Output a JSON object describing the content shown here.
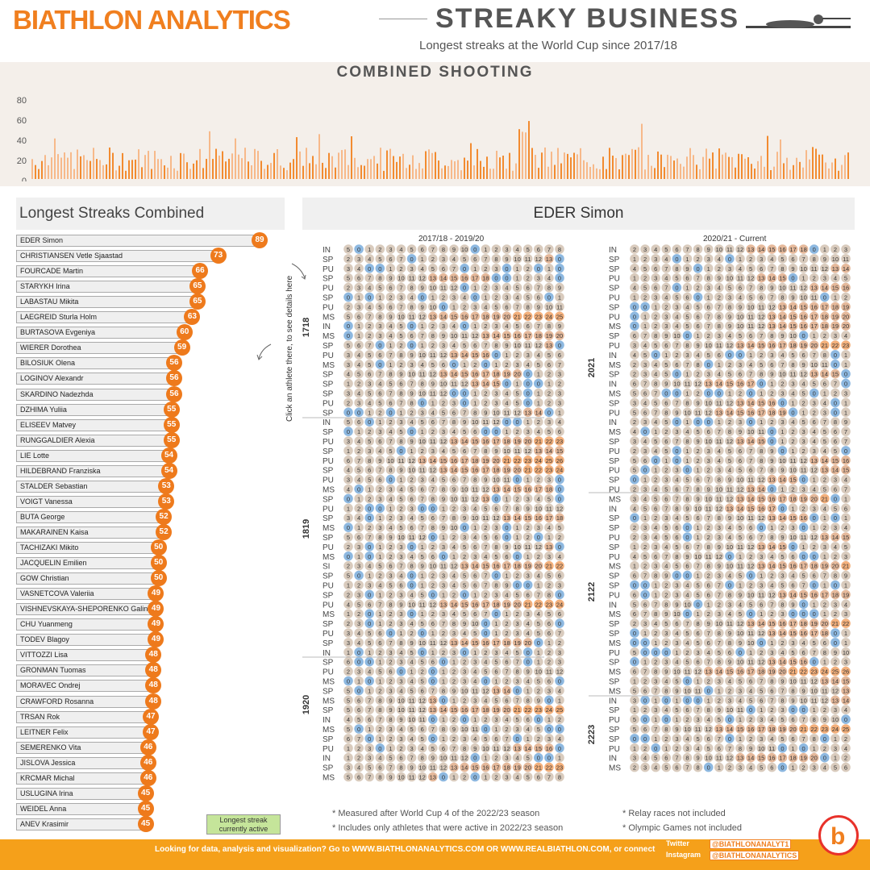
{
  "header": {
    "brand": "BIATHLON ANALYTICS",
    "title": "STREAKY BUSINESS",
    "subtitle": "Longest streaks at the World Cup since 2017/18"
  },
  "spark": {
    "title": "COMBINED SHOOTING",
    "ticks": [
      "80",
      "60",
      "40",
      "20",
      "0"
    ]
  },
  "left": {
    "title": "Longest Streaks Combined",
    "hint": "Click an athlete there, to see details here",
    "legend": "Longest streak currently active",
    "athletes": [
      {
        "name": "EDER Simon",
        "value": 89
      },
      {
        "name": "CHRISTIANSEN Vetle Sjaastad",
        "value": 73
      },
      {
        "name": "FOURCADE Martin",
        "value": 66
      },
      {
        "name": "STARYKH Irina",
        "value": 65
      },
      {
        "name": "LABASTAU Mikita",
        "value": 65
      },
      {
        "name": "LAEGREID Sturla Holm",
        "value": 63
      },
      {
        "name": "BURTASOVA Evgeniya",
        "value": 60
      },
      {
        "name": "WIERER Dorothea",
        "value": 59
      },
      {
        "name": "BILOSIUK Olena",
        "value": 56
      },
      {
        "name": "LOGINOV Alexandr",
        "value": 56
      },
      {
        "name": "SKARDINO Nadezhda",
        "value": 56
      },
      {
        "name": "DZHIMA Yuliia",
        "value": 55
      },
      {
        "name": "ELISEEV Matvey",
        "value": 55
      },
      {
        "name": "RUNGGALDIER Alexia",
        "value": 55
      },
      {
        "name": "LIE Lotte",
        "value": 54
      },
      {
        "name": "HILDEBRAND Franziska",
        "value": 54
      },
      {
        "name": "STALDER Sebastian",
        "value": 53
      },
      {
        "name": "VOIGT Vanessa",
        "value": 53
      },
      {
        "name": "BUTA George",
        "value": 52
      },
      {
        "name": "MAKARAINEN Kaisa",
        "value": 52
      },
      {
        "name": "TACHIZAKI Mikito",
        "value": 50
      },
      {
        "name": "JACQUELIN Emilien",
        "value": 50
      },
      {
        "name": "GOW Christian",
        "value": 50
      },
      {
        "name": "VASNETCOVA Valeriia",
        "value": 49
      },
      {
        "name": "VISHNEVSKAYA-SHEPORENKO Galina",
        "value": 49
      },
      {
        "name": "CHU Yuanmeng",
        "value": 49
      },
      {
        "name": "TODEV Blagoy",
        "value": 49
      },
      {
        "name": "VITTOZZI Lisa",
        "value": 48
      },
      {
        "name": "GRONMAN Tuomas",
        "value": 48
      },
      {
        "name": "MORAVEC Ondrej",
        "value": 48
      },
      {
        "name": "CRAWFORD Rosanna",
        "value": 48
      },
      {
        "name": "TRSAN Rok",
        "value": 47
      },
      {
        "name": "LEITNER Felix",
        "value": 47
      },
      {
        "name": "SEMERENKO Vita",
        "value": 46
      },
      {
        "name": "JISLOVA Jessica",
        "value": 46
      },
      {
        "name": "KRCMAR Michal",
        "value": 46
      },
      {
        "name": "USLUGINA Irina",
        "value": 45
      },
      {
        "name": "WEIDEL Anna",
        "value": 45
      },
      {
        "name": "ANEV Krasimir",
        "value": 45
      }
    ]
  },
  "right": {
    "athlete": "EDER Simon",
    "col1": "2017/18 - 2019/20",
    "col2": "2020/21 - Current",
    "col1_rows": [
      "IN",
      "SP",
      "PU",
      "SP",
      "PU",
      "SP",
      "PU",
      "MS",
      "IN",
      "MS",
      "SP",
      "PU",
      "MS",
      "SP",
      "SP",
      "SP",
      "PU",
      "SP",
      "IN",
      "SP",
      "PU",
      "SP",
      "PU",
      "SP",
      "PU",
      "MS",
      "SP",
      "PU",
      "SP",
      "MS",
      "SP",
      "PU",
      "MS",
      "SI",
      "SP",
      "PU",
      "SP",
      "PU",
      "MS",
      "SP",
      "PU",
      "SP",
      "IN",
      "SP",
      "PU",
      "MS",
      "SP",
      "MS",
      "SP",
      "IN",
      "MS",
      "SP",
      "PU",
      "IN",
      "SP",
      "MS"
    ],
    "col2_rows": [
      "IN",
      "SP",
      "SP",
      "PU",
      "SP",
      "PU",
      "SP",
      "PU",
      "MS",
      "SP",
      "PU",
      "IN",
      "MS",
      "SP",
      "IN",
      "MS",
      "SP",
      "PU",
      "IN",
      "MS",
      "SP",
      "PU",
      "SP",
      "PU",
      "SP",
      "PU",
      "MS",
      "IN",
      "SP",
      "SP",
      "PU",
      "SP",
      "PU",
      "MS",
      "SP",
      "SP",
      "PU",
      "IN",
      "MS",
      "SP",
      "SP",
      "MS",
      "PU",
      "SP",
      "MS",
      "SP",
      "MS",
      "IN",
      "SP",
      "PU",
      "SP",
      "SP",
      "PU",
      "IN",
      "MS"
    ],
    "seasons_left": [
      "1718",
      "1819",
      "1920"
    ],
    "seasons_right": [
      "2021",
      "2122",
      "2223"
    ]
  },
  "notes": [
    "* Measured after World Cup 4 of the 2022/23 season",
    "* Includes only athletes that were active in 2022/23 season",
    "* Relay races not included",
    "* Olympic Games not included"
  ],
  "footer": {
    "text": "Looking for data, analysis and visualization? Go to WWW.BIATHLONANALYTICS.COM OR WWW.REALBIATHLON.COM, or connect",
    "twitter": "Twitter",
    "instagram": "Instagram",
    "tw_handle": "@BIATHLONANALYT1",
    "ig_handle": "@BIATHLONANALYTICS"
  }
}
